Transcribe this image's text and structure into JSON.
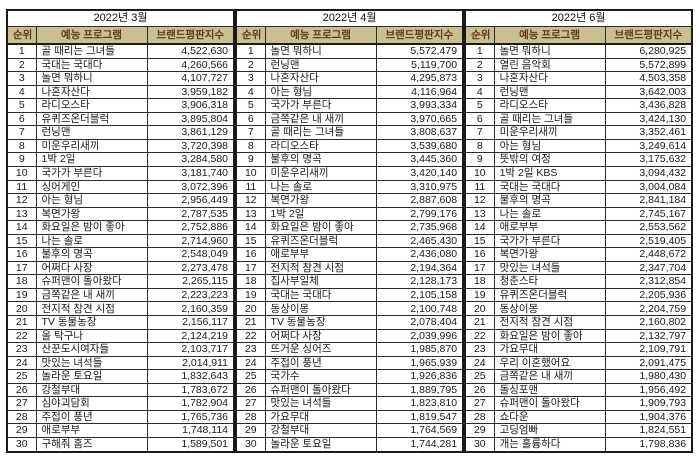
{
  "colors": {
    "header_bg": "#c9c092",
    "header_text": "#5e3a1d",
    "border": "#1a1a1a",
    "body_text": "#1a1a1a",
    "page_bg": "#ffffff"
  },
  "chart_data": [
    {
      "type": "table",
      "title": "2022년 3월",
      "columns": [
        "순위",
        "예능 프로그램",
        "브랜드평판지수"
      ],
      "rows": [
        [
          1,
          "골 때리는 그녀들",
          "4,522,630"
        ],
        [
          2,
          "국대는 국대다",
          "4,260,566"
        ],
        [
          3,
          "놀면 뭐하니",
          "4,107,727"
        ],
        [
          4,
          "나혼자산다",
          "3,959,182"
        ],
        [
          5,
          "라디오스타",
          "3,906,318"
        ],
        [
          6,
          "유퀴즈온더블럭",
          "3,895,804"
        ],
        [
          7,
          "런닝맨",
          "3,861,129"
        ],
        [
          8,
          "미운우리새끼",
          "3,720,398"
        ],
        [
          9,
          "1박 2일",
          "3,284,580"
        ],
        [
          10,
          "국가가 부른다",
          "3,181,740"
        ],
        [
          11,
          "싱어게인",
          "3,072,396"
        ],
        [
          12,
          "아는 형님",
          "2,956,449"
        ],
        [
          13,
          "복면가왕",
          "2,787,535"
        ],
        [
          14,
          "화요일은 밤이 좋아",
          "2,752,886"
        ],
        [
          15,
          "나는 솔로",
          "2,714,960"
        ],
        [
          16,
          "불후의 명곡",
          "2,548,049"
        ],
        [
          17,
          "어쩌다 사장",
          "2,273,478"
        ],
        [
          18,
          "슈퍼맨이 돌아왔다",
          "2,265,115"
        ],
        [
          19,
          "금쪽같은 내 새끼",
          "2,223,223"
        ],
        [
          20,
          "전지적 참견 시점",
          "2,160,359"
        ],
        [
          21,
          "TV 동물농장",
          "2,156,117"
        ],
        [
          22,
          "올 탁구나",
          "2,124,219"
        ],
        [
          23,
          "산꾼도시여자들",
          "2,103,717"
        ],
        [
          24,
          "맛있는 녀석들",
          "2,014,911"
        ],
        [
          25,
          "놀라운 토요일",
          "1,832,643"
        ],
        [
          26,
          "강철부대",
          "1,783,672"
        ],
        [
          27,
          "심야괴담회",
          "1,782,904"
        ],
        [
          28,
          "주접이 풍년",
          "1,765,736"
        ],
        [
          29,
          "애로부부",
          "1,748,114"
        ],
        [
          30,
          "구해줘 홈즈",
          "1,589,501"
        ]
      ]
    },
    {
      "type": "table",
      "title": "2022년 4월",
      "columns": [
        "순위",
        "예능 프로그램",
        "브랜드평판지수"
      ],
      "rows": [
        [
          1,
          "놀면 뭐하니",
          "5,572,479"
        ],
        [
          2,
          "런닝맨",
          "5,119,700"
        ],
        [
          3,
          "나혼자산다",
          "4,295,873"
        ],
        [
          4,
          "아는 형님",
          "4,116,964"
        ],
        [
          5,
          "국가가 부른다",
          "3,993,334"
        ],
        [
          6,
          "금쪽같은 내 새끼",
          "3,970,665"
        ],
        [
          7,
          "골 때리는 그녀들",
          "3,808,637"
        ],
        [
          8,
          "라디오스타",
          "3,539,680"
        ],
        [
          9,
          "불후의 명곡",
          "3,445,360"
        ],
        [
          10,
          "미운우리새끼",
          "3,420,140"
        ],
        [
          11,
          "나는 솔로",
          "3,310,975"
        ],
        [
          12,
          "복면가왕",
          "2,887,608"
        ],
        [
          13,
          "1박 2일",
          "2,799,176"
        ],
        [
          14,
          "화요일은 밤이 좋아",
          "2,735,968"
        ],
        [
          15,
          "유퀴즈온더블럭",
          "2,465,430"
        ],
        [
          16,
          "애로부부",
          "2,436,080"
        ],
        [
          17,
          "전지적 참견 시점",
          "2,194,364"
        ],
        [
          18,
          "집사부일체",
          "2,128,173"
        ],
        [
          19,
          "국대는 국대다",
          "2,105,158"
        ],
        [
          20,
          "동상이몽",
          "2,100,748"
        ],
        [
          21,
          "TV 동물농장",
          "2,078,404"
        ],
        [
          22,
          "어쩌다 사장",
          "2,039,996"
        ],
        [
          23,
          "뜨거운 싱어즈",
          "1,985,870"
        ],
        [
          24,
          "주접이 풍년",
          "1,965,939"
        ],
        [
          25,
          "국가수",
          "1,926,836"
        ],
        [
          26,
          "슈퍼맨이 돌아왔다",
          "1,889,795"
        ],
        [
          27,
          "맛있는 녀석들",
          "1,823,810"
        ],
        [
          28,
          "가요무대",
          "1,819,547"
        ],
        [
          29,
          "강철부대",
          "1,764,569"
        ],
        [
          30,
          "놀라운 토요일",
          "1,744,281"
        ]
      ]
    },
    {
      "type": "table",
      "title": "2022년 6월",
      "columns": [
        "순위",
        "예능 프로그램",
        "브랜드평판지수"
      ],
      "rows": [
        [
          1,
          "놀면 뭐하니",
          "6,280,925"
        ],
        [
          2,
          "열린 음악회",
          "5,572,899"
        ],
        [
          3,
          "나혼자산다",
          "4,503,358"
        ],
        [
          4,
          "런닝맨",
          "3,642,003"
        ],
        [
          5,
          "라디오스타",
          "3,436,828"
        ],
        [
          6,
          "골 때리는 그녀들",
          "3,424,130"
        ],
        [
          7,
          "미운우리새끼",
          "3,352,461"
        ],
        [
          8,
          "아는 형님",
          "3,249,614"
        ],
        [
          9,
          "뜻밖의 여정",
          "3,175,632"
        ],
        [
          10,
          "1박 2일 KBS",
          "3,094,432"
        ],
        [
          11,
          "국대는 국대다",
          "3,004,084"
        ],
        [
          12,
          "불후의 명곡",
          "2,841,184"
        ],
        [
          13,
          "나는 솔로",
          "2,745,167"
        ],
        [
          14,
          "애로부부",
          "2,553,562"
        ],
        [
          15,
          "국가가 부른다",
          "2,519,405"
        ],
        [
          16,
          "복면가왕",
          "2,448,672"
        ],
        [
          17,
          "맛있는 녀석들",
          "2,347,704"
        ],
        [
          18,
          "청춘스타",
          "2,312,854"
        ],
        [
          19,
          "유퀴즈온더블럭",
          "2,205,936"
        ],
        [
          20,
          "동상이몽",
          "2,204,759"
        ],
        [
          21,
          "전지적 참견 시점",
          "2,160,802"
        ],
        [
          22,
          "화요일은 밤이 좋아",
          "2,132,797"
        ],
        [
          23,
          "가요무대",
          "2,109,791"
        ],
        [
          24,
          "우리 이혼했어요",
          "2,091,475"
        ],
        [
          25,
          "금쪽같은 내 새끼",
          "1,980,430"
        ],
        [
          26,
          "돌싱포맨",
          "1,956,492"
        ],
        [
          27,
          "슈퍼맨이 돌아왔다",
          "1,909,793"
        ],
        [
          28,
          "쇼다운",
          "1,904,376"
        ],
        [
          29,
          "고딩엄빠",
          "1,824,551"
        ],
        [
          30,
          "개는 훌륭하다",
          "1,798,836"
        ]
      ]
    }
  ]
}
